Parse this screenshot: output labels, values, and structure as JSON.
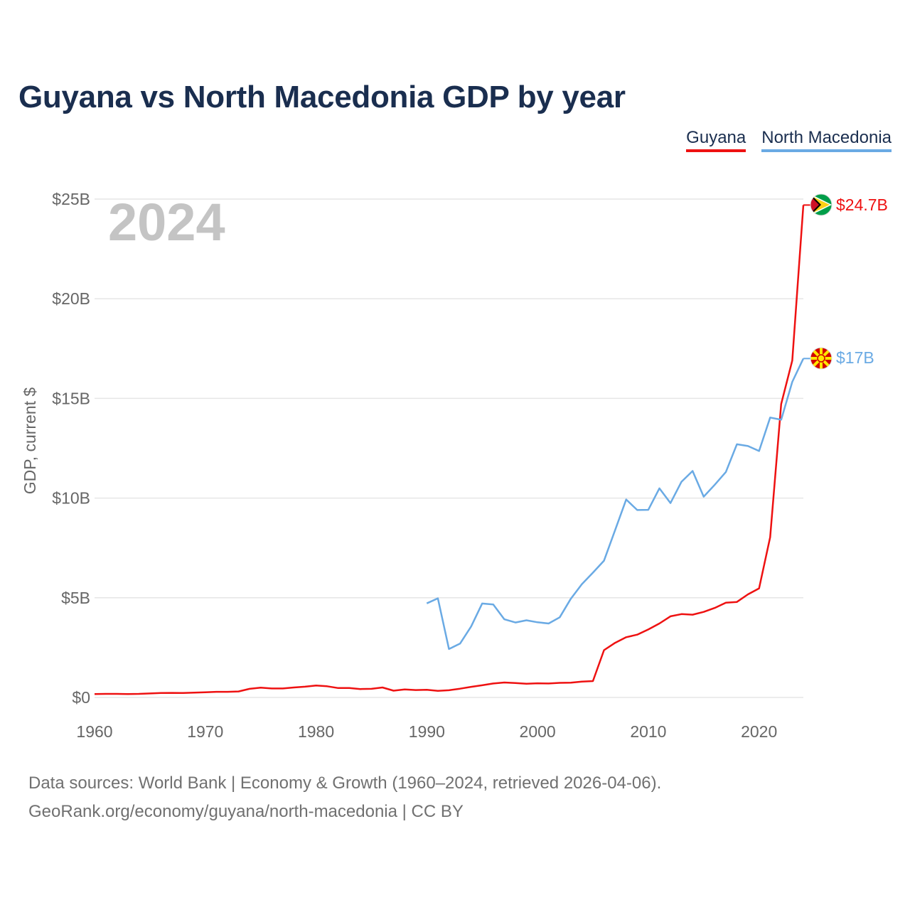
{
  "title": "Guyana vs North Macedonia GDP by year",
  "legend": {
    "guyana": "Guyana",
    "north_macedonia": "North Macedonia"
  },
  "year_label": "2024",
  "footer": {
    "line1": "Data sources: World Bank | Economy & Growth (1960–2024, retrieved 2026-04-06).",
    "line2": "GeoRank.org/economy/guyana/north-macedonia | CC BY"
  },
  "colors": {
    "guyana": "#ee1111",
    "north_macedonia": "#6aaae4",
    "title": "#1a2e4f"
  },
  "chart_data": {
    "type": "line",
    "title": "Guyana vs North Macedonia GDP by year",
    "xlabel": "",
    "ylabel": "GDP, current $",
    "xlim": [
      1960,
      2024
    ],
    "ylim": [
      0,
      25
    ],
    "y_unit": "billion USD",
    "xticks": [
      1960,
      1970,
      1980,
      1990,
      2000,
      2010,
      2020
    ],
    "xtick_labels": [
      "1960",
      "1970",
      "1980",
      "1990",
      "2000",
      "2010",
      "2020"
    ],
    "yticks": [
      0,
      5,
      10,
      15,
      20,
      25
    ],
    "ytick_labels": [
      "$0",
      "$5B",
      "$10B",
      "$15B",
      "$20B",
      "$25B"
    ],
    "grid": true,
    "legend": "top-right",
    "series": [
      {
        "name": "Guyana",
        "end_label": "$24.7B",
        "points": [
          [
            1960,
            0.17
          ],
          [
            1961,
            0.18
          ],
          [
            1962,
            0.18
          ],
          [
            1963,
            0.17
          ],
          [
            1964,
            0.18
          ],
          [
            1965,
            0.2
          ],
          [
            1966,
            0.22
          ],
          [
            1967,
            0.23
          ],
          [
            1968,
            0.22
          ],
          [
            1969,
            0.24
          ],
          [
            1970,
            0.26
          ],
          [
            1971,
            0.28
          ],
          [
            1972,
            0.28
          ],
          [
            1973,
            0.3
          ],
          [
            1974,
            0.43
          ],
          [
            1975,
            0.49
          ],
          [
            1976,
            0.45
          ],
          [
            1977,
            0.45
          ],
          [
            1978,
            0.5
          ],
          [
            1979,
            0.54
          ],
          [
            1980,
            0.6
          ],
          [
            1981,
            0.56
          ],
          [
            1982,
            0.47
          ],
          [
            1983,
            0.47
          ],
          [
            1984,
            0.42
          ],
          [
            1985,
            0.43
          ],
          [
            1986,
            0.5
          ],
          [
            1987,
            0.34
          ],
          [
            1988,
            0.4
          ],
          [
            1989,
            0.37
          ],
          [
            1990,
            0.38
          ],
          [
            1991,
            0.33
          ],
          [
            1992,
            0.36
          ],
          [
            1993,
            0.44
          ],
          [
            1994,
            0.53
          ],
          [
            1995,
            0.61
          ],
          [
            1996,
            0.7
          ],
          [
            1997,
            0.75
          ],
          [
            1998,
            0.72
          ],
          [
            1999,
            0.69
          ],
          [
            2000,
            0.71
          ],
          [
            2001,
            0.7
          ],
          [
            2002,
            0.73
          ],
          [
            2003,
            0.74
          ],
          [
            2004,
            0.79
          ],
          [
            2005,
            0.82
          ],
          [
            2006,
            2.37
          ],
          [
            2007,
            2.74
          ],
          [
            2008,
            3.02
          ],
          [
            2009,
            3.15
          ],
          [
            2010,
            3.41
          ],
          [
            2011,
            3.71
          ],
          [
            2012,
            4.07
          ],
          [
            2013,
            4.18
          ],
          [
            2014,
            4.15
          ],
          [
            2015,
            4.29
          ],
          [
            2016,
            4.49
          ],
          [
            2017,
            4.75
          ],
          [
            2018,
            4.79
          ],
          [
            2019,
            5.17
          ],
          [
            2020,
            5.47
          ],
          [
            2021,
            8.04
          ],
          [
            2022,
            14.72
          ],
          [
            2023,
            16.9
          ],
          [
            2024,
            24.7
          ]
        ]
      },
      {
        "name": "North Macedonia",
        "end_label": "$17B",
        "points": [
          [
            1990,
            4.72
          ],
          [
            1991,
            4.97
          ],
          [
            1992,
            2.43
          ],
          [
            1993,
            2.7
          ],
          [
            1994,
            3.56
          ],
          [
            1995,
            4.71
          ],
          [
            1996,
            4.66
          ],
          [
            1997,
            3.92
          ],
          [
            1998,
            3.76
          ],
          [
            1999,
            3.87
          ],
          [
            2000,
            3.77
          ],
          [
            2001,
            3.71
          ],
          [
            2002,
            4.02
          ],
          [
            2003,
            4.95
          ],
          [
            2004,
            5.68
          ],
          [
            2005,
            6.26
          ],
          [
            2006,
            6.86
          ],
          [
            2007,
            8.39
          ],
          [
            2008,
            9.93
          ],
          [
            2009,
            9.4
          ],
          [
            2010,
            9.41
          ],
          [
            2011,
            10.49
          ],
          [
            2012,
            9.75
          ],
          [
            2013,
            10.82
          ],
          [
            2014,
            11.36
          ],
          [
            2015,
            10.07
          ],
          [
            2016,
            10.67
          ],
          [
            2017,
            11.31
          ],
          [
            2018,
            12.7
          ],
          [
            2019,
            12.61
          ],
          [
            2020,
            12.36
          ],
          [
            2021,
            14.04
          ],
          [
            2022,
            13.93
          ],
          [
            2023,
            15.83
          ],
          [
            2024,
            17.0
          ]
        ]
      }
    ]
  }
}
